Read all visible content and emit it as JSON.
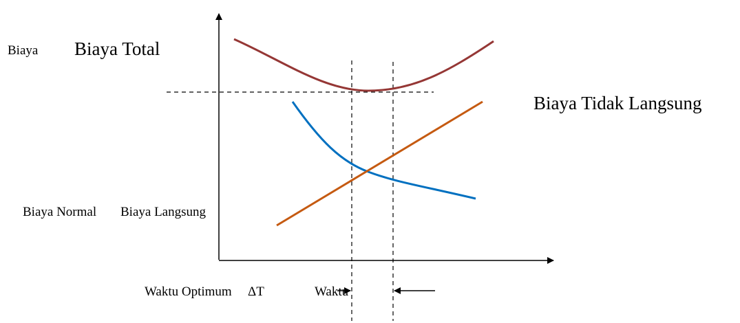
{
  "labels": {
    "y_axis": "Biaya",
    "total_cost": "Biaya Total",
    "indirect_cost": "Biaya Tidak Langsung",
    "normal_cost": "Biaya Normal",
    "direct_cost": "Biaya Langsung",
    "optimum_time": "Waktu Optimum",
    "delta_t": "ΔT",
    "time_axis": "Waktu"
  },
  "colors": {
    "total_cost_curve": "#953735",
    "indirect_cost_curve": "#0070C0",
    "direct_cost_line": "#C55A11",
    "axes": "#000000"
  }
}
